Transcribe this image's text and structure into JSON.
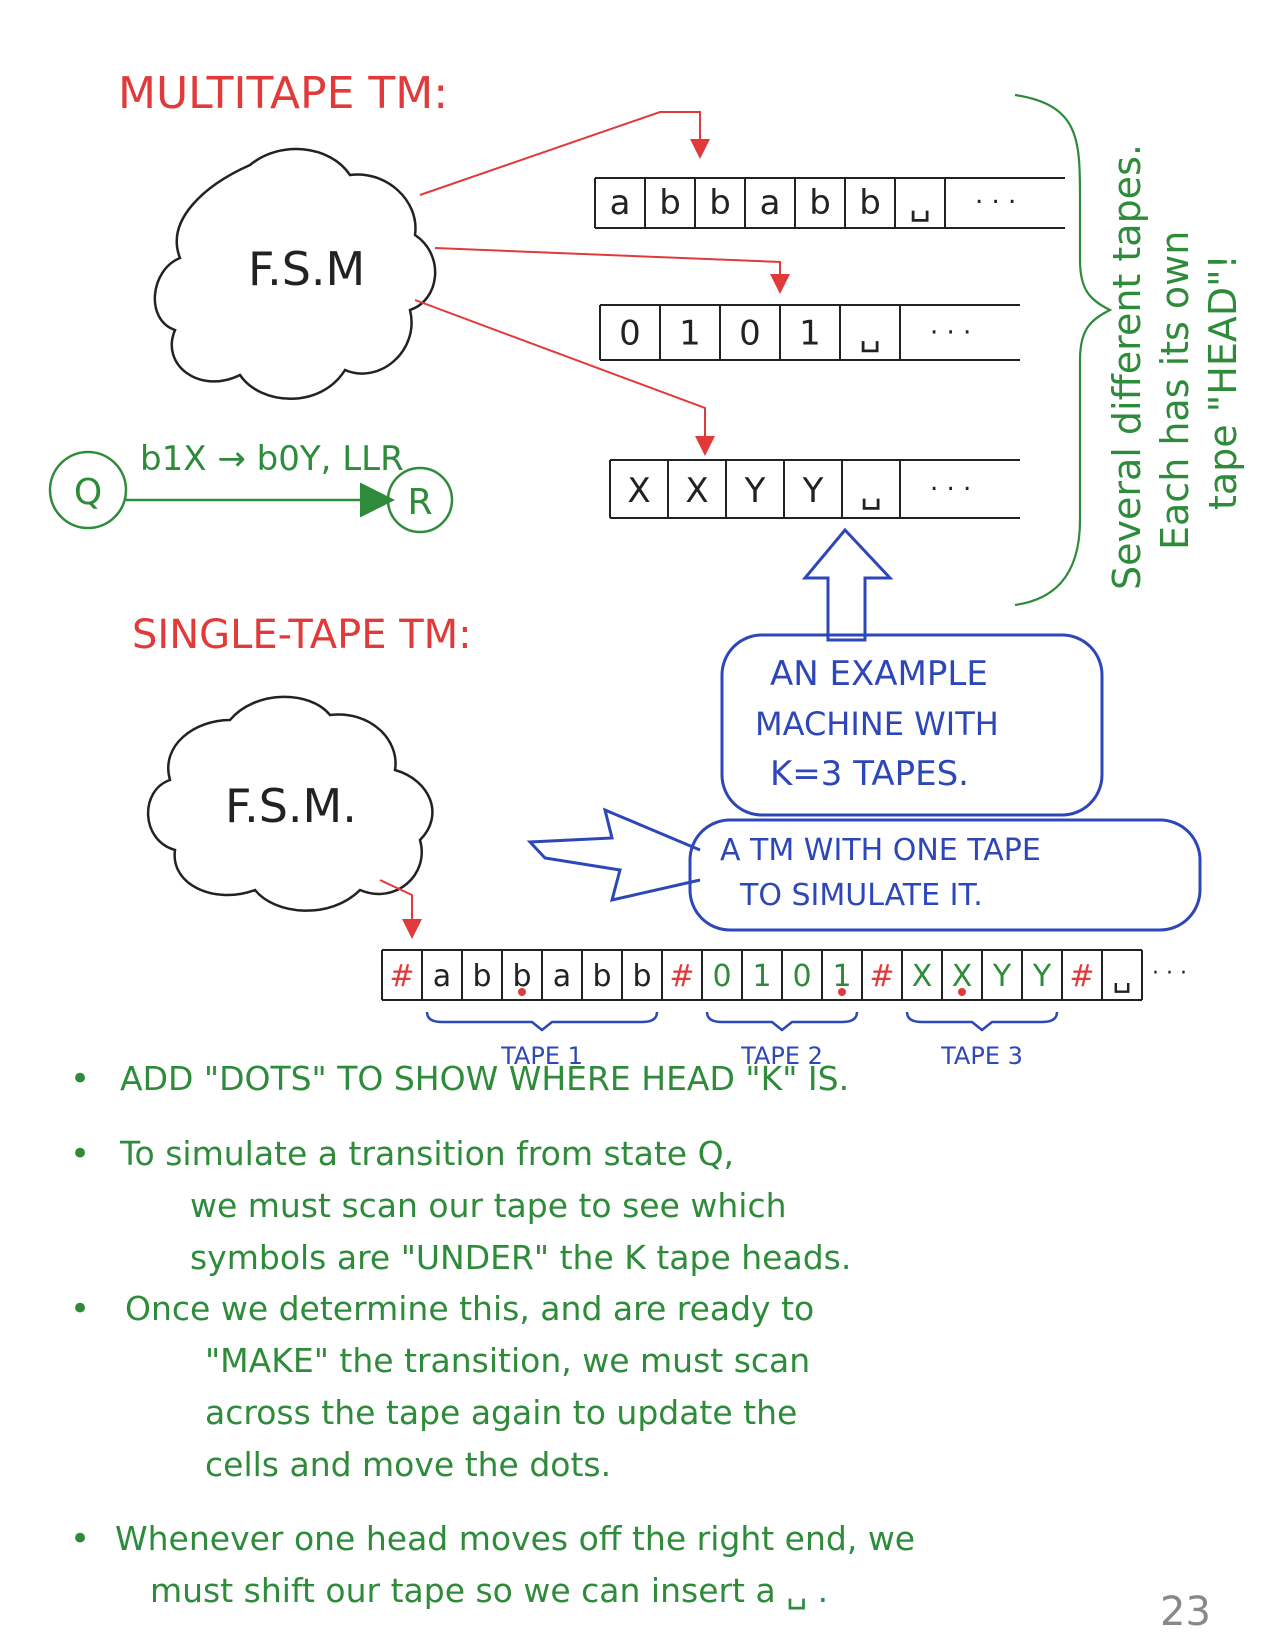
{
  "titles": {
    "multitape": "MULTITAPE  TM:",
    "single_tape": "SINGLE-TAPE  TM:"
  },
  "fsm_label_multi": "F.S.M",
  "fsm_label_single": "F.S.M.",
  "tapes": [
    {
      "cells": [
        "a",
        "b",
        "b",
        "a",
        "b",
        "b",
        "␣"
      ],
      "ellipsis": "· · ·"
    },
    {
      "cells": [
        "0",
        "1",
        "0",
        "1",
        "␣"
      ],
      "ellipsis": "· · ·"
    },
    {
      "cells": [
        "X",
        "X",
        "Y",
        "Y",
        "␣"
      ],
      "ellipsis": "· · ·"
    }
  ],
  "brace_note": {
    "line1": "Several different tapes.",
    "line2": "Each has its own",
    "line3": "tape \"HEAD\"!"
  },
  "transition": {
    "from": "Q",
    "to": "R",
    "label": "b1X → b0Y, LLR"
  },
  "callouts": {
    "example": [
      "AN EXAMPLE",
      "MACHINE WITH",
      "K=3 TAPES."
    ],
    "simulate": [
      "A TM WITH ONE TAPE",
      "TO SIMULATE IT."
    ]
  },
  "single_tape": {
    "cells": [
      "#",
      "a",
      "b",
      "b",
      "a",
      "b",
      "b",
      "#",
      "0",
      "1",
      "0",
      "1",
      "#",
      "X",
      "X",
      "Y",
      "Y",
      "#",
      "␣"
    ],
    "ellipsis": "· · ·",
    "groups": [
      "TAPE 1",
      "TAPE 2",
      "TAPE 3"
    ]
  },
  "bullets": [
    {
      "bullet": "•",
      "lines": [
        "ADD \"DOTS\" TO SHOW WHERE HEAD \"K\" IS."
      ]
    },
    {
      "bullet": "•",
      "lines": [
        "To simulate a transition from state Q,",
        "we must scan our tape to see which",
        "symbols are \"UNDER\" the K tape heads."
      ]
    },
    {
      "bullet": "•",
      "lines": [
        "Once we determine this, and are ready to",
        "\"MAKE\" the transition, we must scan",
        "across the tape again to update the",
        "cells and move the dots."
      ]
    },
    {
      "bullet": "•",
      "lines": [
        "Whenever one head moves off the right end, we",
        "must shift our tape so we can insert a ␣ ."
      ]
    }
  ],
  "page_number": "23",
  "colors": {
    "red": "#e03a3a",
    "green": "#2e8b3a",
    "blue": "#2d47b8",
    "black": "#222222"
  }
}
